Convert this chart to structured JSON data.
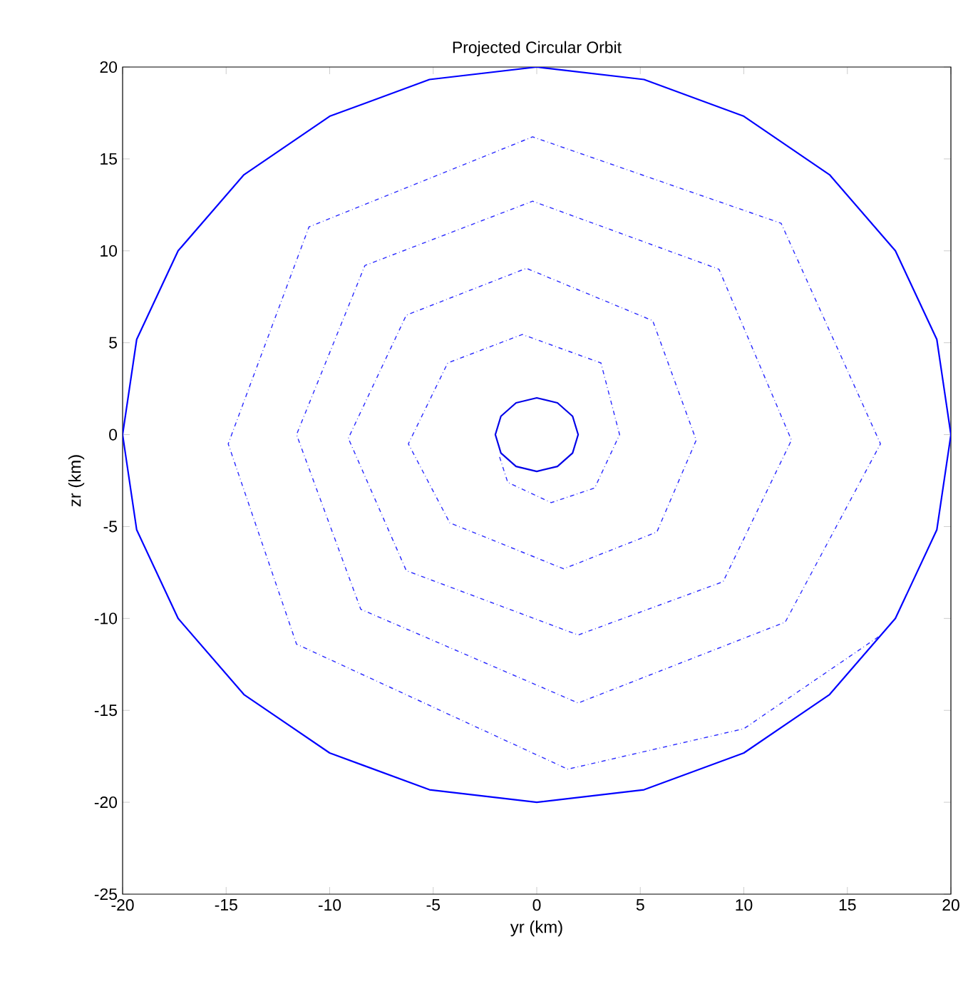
{
  "chart_data": {
    "type": "line",
    "title": "Projected Circular Orbit",
    "xlabel": "yr (km)",
    "ylabel": "zr (km)",
    "xlim": [
      -20,
      20
    ],
    "ylim": [
      -25,
      20
    ],
    "xticks": [
      -20,
      -15,
      -10,
      -5,
      0,
      5,
      10,
      15,
      20
    ],
    "yticks": [
      -25,
      -20,
      -15,
      -10,
      -5,
      0,
      5,
      10,
      15,
      20
    ],
    "grid": false,
    "marker": "none",
    "series": [
      {
        "color": "#0000ff",
        "line_style": "solid",
        "x": [
          20,
          19.32,
          17.32,
          14.14,
          10,
          5.18,
          0,
          -5.18,
          -10,
          -14.14,
          -17.32,
          -19.32,
          -20,
          -19.32,
          -17.32,
          -14.14,
          -10,
          -5.18,
          0,
          5.18,
          10,
          14.14,
          17.32,
          19.32,
          20,
          19.32
        ],
        "values": [
          0,
          5.18,
          10,
          14.14,
          17.32,
          19.32,
          20,
          19.32,
          17.32,
          14.14,
          10,
          5.18,
          0,
          -5.18,
          -10,
          -14.14,
          -17.32,
          -19.32,
          -20,
          -19.32,
          -17.32,
          -14.14,
          -10,
          -5.18,
          0,
          5.18
        ]
      },
      {
        "color": "#2a2aff",
        "line_style": "dashdot",
        "x": [
          16.5,
          10,
          1.5,
          -11.6,
          -14.9,
          -11,
          -0.2,
          11.8,
          16.6,
          12,
          2,
          -8.5,
          -11.6,
          -8.3,
          -0.2,
          8.8,
          12.3,
          9,
          2,
          -6.3,
          -9.1,
          -6.3,
          -0.5,
          5.6,
          7.7,
          5.8,
          1.3,
          -4.2,
          -6.2,
          -4.3,
          -0.7,
          3.1,
          4.0,
          2.8,
          0.7,
          -1.4,
          -1.8
        ],
        "values": [
          -11,
          -16,
          -18.2,
          -11.4,
          -0.5,
          11.3,
          16.2,
          11.5,
          -0.5,
          -10.2,
          -14.6,
          -9.5,
          0,
          9.2,
          12.7,
          9.0,
          -0.3,
          -8,
          -10.9,
          -7.4,
          -0.2,
          6.5,
          9.05,
          6.2,
          -0.3,
          -5.3,
          -7.3,
          -4.8,
          -0.5,
          3.9,
          5.45,
          3.9,
          0,
          -2.9,
          -3.7,
          -2.6,
          -1.2
        ]
      },
      {
        "color": "#0000e8",
        "line_style": "solid",
        "x": [
          2,
          1.73,
          1,
          0,
          -1,
          -1.73,
          -2,
          -1.73,
          -1,
          0,
          1,
          1.73,
          2,
          1.73
        ],
        "values": [
          0,
          1,
          1.73,
          2,
          1.73,
          1,
          0,
          -1,
          -1.73,
          -2,
          -1.73,
          -1,
          0,
          1
        ]
      }
    ]
  }
}
